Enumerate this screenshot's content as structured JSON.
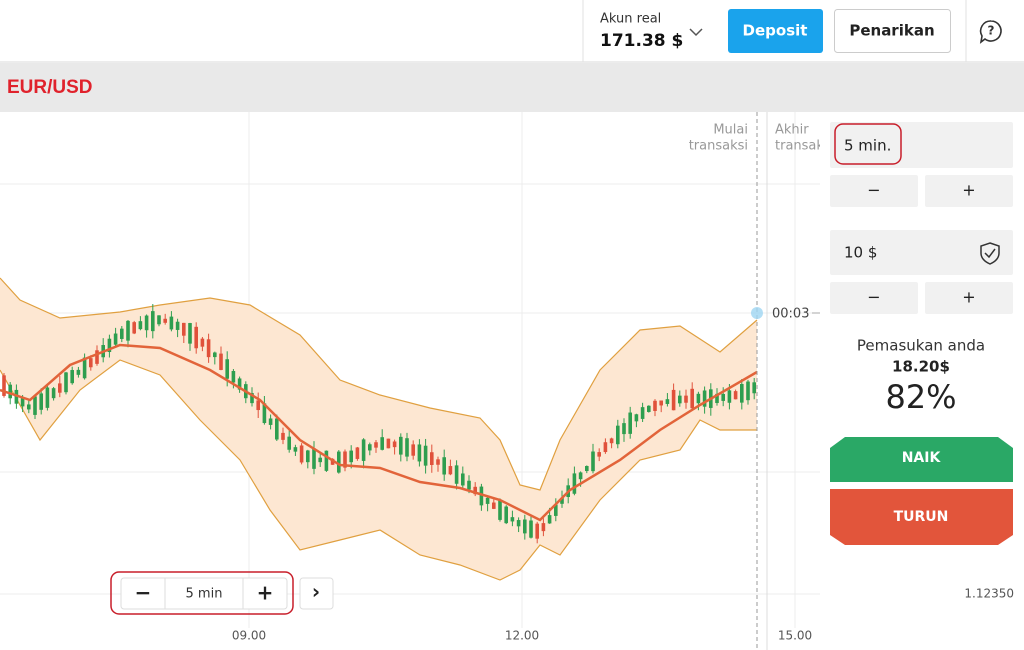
{
  "header": {
    "account_label": "Akun real",
    "balance": "171.38 $",
    "deposit": "Deposit",
    "withdraw": "Penarikan",
    "help": "?"
  },
  "instrument": "EUR/USD",
  "chart": {
    "start_label": [
      "Mulai",
      "transaksi"
    ],
    "end_label": [
      "Akhir",
      "transaksi"
    ],
    "timer": "00:03",
    "price_label": "1.12350",
    "x_labels": [
      "09.00",
      "12.00",
      "15.00"
    ],
    "zoom": {
      "minus": "−",
      "value": "5 min",
      "plus": "+",
      "next": "›"
    }
  },
  "panel": {
    "duration": "5 min.",
    "duration_minus": "−",
    "duration_plus": "+",
    "amount": "10 $",
    "amount_minus": "−",
    "amount_plus": "+",
    "income_label": "Pemasukan anda",
    "income": "18.20$",
    "percent": "82%",
    "up": "NAIK",
    "down": "TURUN"
  }
}
